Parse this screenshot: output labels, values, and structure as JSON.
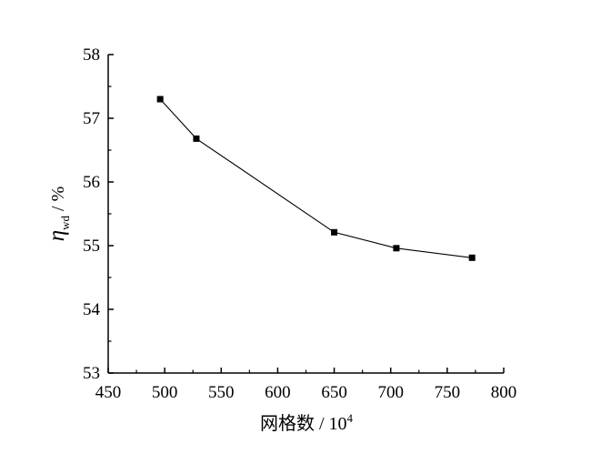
{
  "chart_data": {
    "type": "line",
    "title": "",
    "xlabel": "网格数 / 10",
    "xlabel_superscript": "4",
    "ylabel_symbol": "η",
    "ylabel_subscript": "wd",
    "ylabel_unit": " / %",
    "xlim": [
      450,
      800
    ],
    "ylim": [
      53,
      58
    ],
    "xticks": [
      450,
      500,
      550,
      600,
      650,
      700,
      750,
      800
    ],
    "yticks": [
      53,
      54,
      55,
      56,
      57,
      58
    ],
    "grid": false,
    "legend": "none",
    "series": [
      {
        "x": [
          496,
          528,
          650,
          705,
          772
        ],
        "y": [
          57.3,
          56.68,
          55.21,
          54.96,
          54.81
        ],
        "marker": "square",
        "color": "#000000"
      }
    ]
  }
}
